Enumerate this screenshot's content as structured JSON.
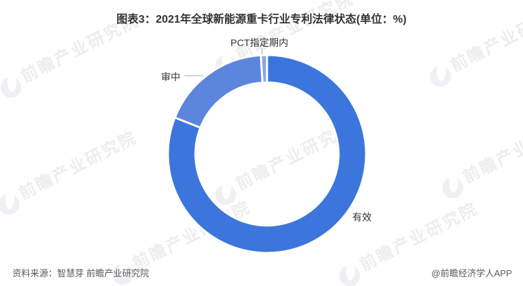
{
  "title": "图表3：2021年全球新能源重卡行业专利法律状态(单位：%)",
  "chart_data": {
    "type": "pie",
    "subtype": "donut",
    "title": "2021年全球新能源重卡行业专利法律状态",
    "unit": "%",
    "direction": "clockwise",
    "start_angle_deg": 0,
    "labels_shown": true,
    "values_shown": false,
    "segments": [
      {
        "key": "valid",
        "label": "有效",
        "value": 81,
        "color": "#3C76DC"
      },
      {
        "key": "pending",
        "label": "审中",
        "value": 18,
        "color": "#5C86DD"
      },
      {
        "key": "pct",
        "label": "PCT指定期内",
        "value": 1,
        "color": "#89A7E6"
      }
    ]
  },
  "footer": {
    "source": "资料来源：智慧芽 前瞻产业研究院",
    "credit": "@前瞻经济学人APP"
  },
  "watermark": {
    "text": "前瞻产业研究院"
  },
  "colors": {
    "background": "#FFFFFF",
    "title_text": "#333333",
    "label_text": "#333333",
    "footer_text": "#595959",
    "leader_line": "#A6A6A6"
  }
}
